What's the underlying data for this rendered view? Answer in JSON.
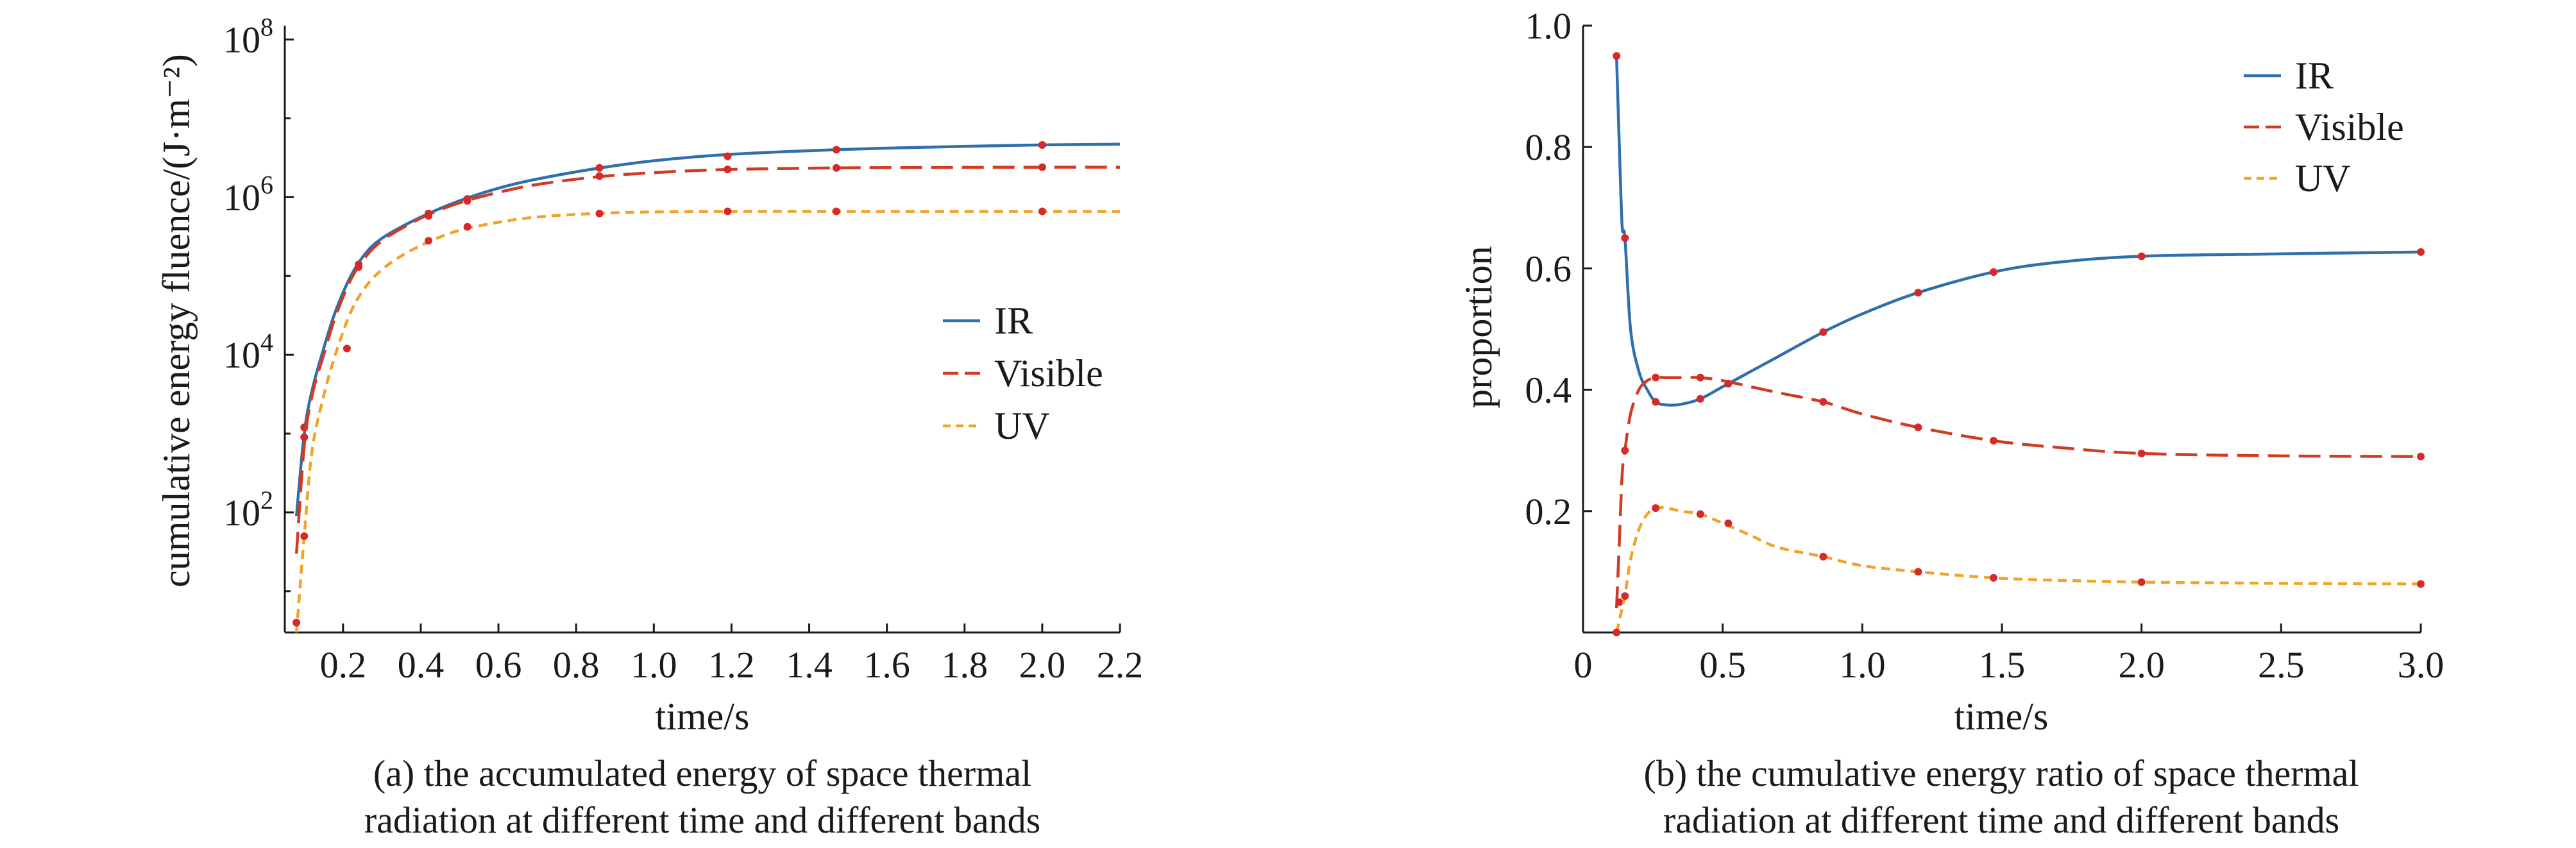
{
  "colors": {
    "IR": "#2e6fac",
    "Visible": "#d03b22",
    "UV": "#f2a225",
    "marker": "#d62a2a"
  },
  "chart_data": [
    {
      "type": "line",
      "panel": "a",
      "caption_lines": [
        "(a) the accumulated energy of space thermal",
        "radiation at different time and different bands"
      ],
      "xlabel": "time/s",
      "ylabel": "cumulative energy fluence/(J·m⁻²)",
      "xlim": [
        0.05,
        2.2
      ],
      "ylim": [
        3,
        150000000
      ],
      "yscale": "log",
      "xticks": [
        0.2,
        0.4,
        0.6,
        0.8,
        1.0,
        1.2,
        1.4,
        1.6,
        1.8,
        2.0,
        2.2
      ],
      "xtick_labels": [
        "0.2",
        "0.4",
        "0.6",
        "0.8",
        "1.0",
        "1.2",
        "1.4",
        "1.6",
        "1.8",
        "2.0",
        "2.2"
      ],
      "yticks": [
        100,
        10000,
        1000000,
        100000000
      ],
      "ytick_labels": [
        {
          "base": "10",
          "exp": "2"
        },
        {
          "base": "10",
          "exp": "4"
        },
        {
          "base": "10",
          "exp": "6"
        },
        {
          "base": "10",
          "exp": "8"
        }
      ],
      "legend": "center-right",
      "grid": false,
      "series": [
        {
          "name": "IR",
          "dash": "solid",
          "x": [
            0.08,
            0.1,
            0.12,
            0.15,
            0.18,
            0.22,
            0.26,
            0.3,
            0.35,
            0.42,
            0.5,
            0.6,
            0.7,
            0.85,
            1.0,
            1.2,
            1.47,
            1.7,
            2.0,
            2.2
          ],
          "y": [
            90,
            1000,
            3500,
            12000,
            35000,
            100000,
            200000,
            300000,
            420000,
            620000,
            900000,
            1300000,
            1700000,
            2300000,
            2900000,
            3500000,
            4000000,
            4300000,
            4600000,
            4700000
          ],
          "markers_x": [
            0.1,
            0.24,
            0.42,
            0.52,
            0.86,
            1.19,
            1.47,
            2.0
          ],
          "markers_y": [
            1200,
            140000,
            620000,
            950000,
            2350000,
            3300000,
            4000000,
            4600000
          ]
        },
        {
          "name": "Visible",
          "dash": "long-dash",
          "x": [
            0.08,
            0.1,
            0.12,
            0.15,
            0.18,
            0.22,
            0.26,
            0.3,
            0.35,
            0.42,
            0.5,
            0.6,
            0.7,
            0.85,
            1.0,
            1.2,
            1.47,
            1.7,
            2.0,
            2.2
          ],
          "y": [
            30,
            700,
            3000,
            10000,
            30000,
            90000,
            180000,
            280000,
            400000,
            600000,
            850000,
            1150000,
            1450000,
            1800000,
            2050000,
            2250000,
            2350000,
            2380000,
            2400000,
            2400000
          ],
          "markers_x": [
            0.1,
            0.24,
            0.42,
            0.52,
            0.86,
            1.19,
            1.47,
            2.0
          ],
          "markers_y": [
            900,
            130000,
            580000,
            900000,
            1850000,
            2250000,
            2350000,
            2400000
          ]
        },
        {
          "name": "UV",
          "dash": "dotted-dash",
          "x": [
            0.08,
            0.1,
            0.12,
            0.15,
            0.18,
            0.22,
            0.26,
            0.3,
            0.35,
            0.42,
            0.5,
            0.6,
            0.7,
            0.85,
            1.0,
            1.2,
            1.47,
            1.7,
            2.0,
            2.2
          ],
          "y": [
            3,
            50,
            600,
            3000,
            10000,
            35000,
            75000,
            120000,
            180000,
            270000,
            380000,
            480000,
            560000,
            620000,
            650000,
            660000,
            660000,
            660000,
            660000,
            660000
          ],
          "markers_x": [
            0.08,
            0.1,
            0.21,
            0.42,
            0.52,
            0.86,
            1.19,
            1.47,
            2.0
          ],
          "markers_y": [
            4,
            50,
            12000,
            280000,
            420000,
            620000,
            660000,
            660000,
            660000
          ]
        }
      ]
    },
    {
      "type": "line",
      "panel": "b",
      "caption_lines": [
        "(b) the cumulative energy ratio of space thermal",
        "radiation at different time and different bands"
      ],
      "xlabel": "time/s",
      "ylabel": "proportion",
      "xlim": [
        0,
        3.0
      ],
      "ylim": [
        0,
        1.0
      ],
      "xticks": [
        0,
        0.5,
        1.0,
        1.5,
        2.0,
        2.5,
        3.0
      ],
      "xtick_labels": [
        "0",
        "0.5",
        "1.0",
        "1.5",
        "2.0",
        "2.5",
        "3.0"
      ],
      "yticks": [
        0.2,
        0.4,
        0.6,
        0.8,
        1.0
      ],
      "ytick_labels": [
        "0.2",
        "0.4",
        "0.6",
        "0.8",
        "1.0"
      ],
      "legend": "top-right",
      "grid": false,
      "series": [
        {
          "name": "IR",
          "dash": "solid",
          "x": [
            0.12,
            0.13,
            0.14,
            0.15,
            0.17,
            0.2,
            0.23,
            0.26,
            0.3,
            0.35,
            0.42,
            0.5,
            0.6,
            0.7,
            0.86,
            1.0,
            1.2,
            1.47,
            1.7,
            2.0,
            2.5,
            3.0
          ],
          "y": [
            0.95,
            0.8,
            0.67,
            0.65,
            0.5,
            0.43,
            0.4,
            0.38,
            0.375,
            0.376,
            0.385,
            0.405,
            0.43,
            0.455,
            0.495,
            0.525,
            0.56,
            0.594,
            0.61,
            0.62,
            0.624,
            0.627
          ],
          "markers_x": [
            0.12,
            0.15,
            0.26,
            0.42,
            0.52,
            0.86,
            1.2,
            1.47,
            2.0,
            3.0
          ],
          "markers_y": [
            0.95,
            0.65,
            0.38,
            0.385,
            0.41,
            0.495,
            0.56,
            0.594,
            0.62,
            0.627
          ]
        },
        {
          "name": "Visible",
          "dash": "long-dash",
          "x": [
            0.12,
            0.13,
            0.14,
            0.15,
            0.17,
            0.2,
            0.23,
            0.26,
            0.3,
            0.35,
            0.42,
            0.5,
            0.6,
            0.7,
            0.86,
            1.0,
            1.2,
            1.47,
            1.7,
            2.0,
            2.5,
            3.0
          ],
          "y": [
            0.04,
            0.15,
            0.26,
            0.3,
            0.36,
            0.4,
            0.415,
            0.42,
            0.42,
            0.42,
            0.42,
            0.415,
            0.405,
            0.395,
            0.38,
            0.36,
            0.338,
            0.316,
            0.305,
            0.295,
            0.291,
            0.29
          ],
          "markers_x": [
            0.13,
            0.15,
            0.26,
            0.42,
            0.52,
            0.86,
            1.2,
            1.47,
            2.0,
            3.0
          ],
          "markers_y": [
            0.05,
            0.3,
            0.42,
            0.42,
            0.41,
            0.38,
            0.338,
            0.316,
            0.295,
            0.29
          ]
        },
        {
          "name": "UV",
          "dash": "dotted-dash",
          "x": [
            0.12,
            0.13,
            0.14,
            0.15,
            0.17,
            0.2,
            0.23,
            0.26,
            0.3,
            0.35,
            0.42,
            0.5,
            0.6,
            0.7,
            0.86,
            1.0,
            1.2,
            1.47,
            1.7,
            2.0,
            2.5,
            3.0
          ],
          "y": [
            0.0,
            0.02,
            0.04,
            0.06,
            0.12,
            0.17,
            0.195,
            0.205,
            0.205,
            0.2,
            0.195,
            0.18,
            0.16,
            0.14,
            0.125,
            0.11,
            0.1,
            0.09,
            0.086,
            0.083,
            0.081,
            0.08
          ],
          "markers_x": [
            0.12,
            0.15,
            0.26,
            0.42,
            0.52,
            0.86,
            1.2,
            1.47,
            2.0,
            3.0
          ],
          "markers_y": [
            0.0,
            0.06,
            0.205,
            0.195,
            0.18,
            0.125,
            0.1,
            0.09,
            0.083,
            0.08
          ]
        }
      ]
    }
  ]
}
